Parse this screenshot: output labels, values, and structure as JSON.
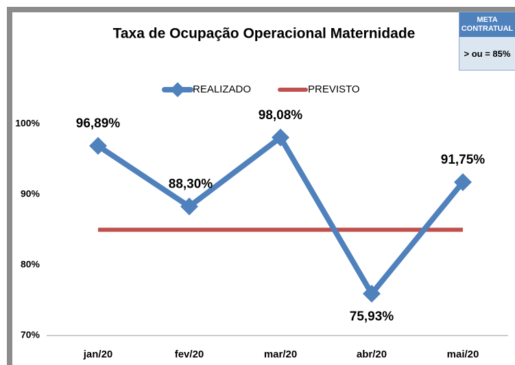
{
  "chart_data": {
    "type": "line",
    "title": "Taxa de Ocupação Operacional Maternidade",
    "categories": [
      "jan/20",
      "fev/20",
      "mar/20",
      "abr/20",
      "mai/20"
    ],
    "series": [
      {
        "name": "REALIZADO",
        "color": "#4f81bd",
        "values": [
          96.89,
          88.3,
          98.08,
          75.93,
          91.75
        ],
        "value_labels": [
          "96,89%",
          "88,30%",
          "98,08%",
          "75,93%",
          "91,75%"
        ]
      },
      {
        "name": "PREVISTO",
        "color": "#c0504d",
        "values": [
          85,
          85,
          85,
          85,
          85
        ]
      }
    ],
    "ylim": [
      70,
      100
    ],
    "yticks": [
      {
        "value": 70,
        "label": "70%"
      },
      {
        "value": 80,
        "label": "80%"
      },
      {
        "value": 90,
        "label": "90%"
      },
      {
        "value": 100,
        "label": "100%"
      }
    ],
    "grid": false,
    "legend": "top",
    "meta_box": {
      "title": "META CONTRATUAL",
      "text": "> ou = 85%"
    }
  }
}
